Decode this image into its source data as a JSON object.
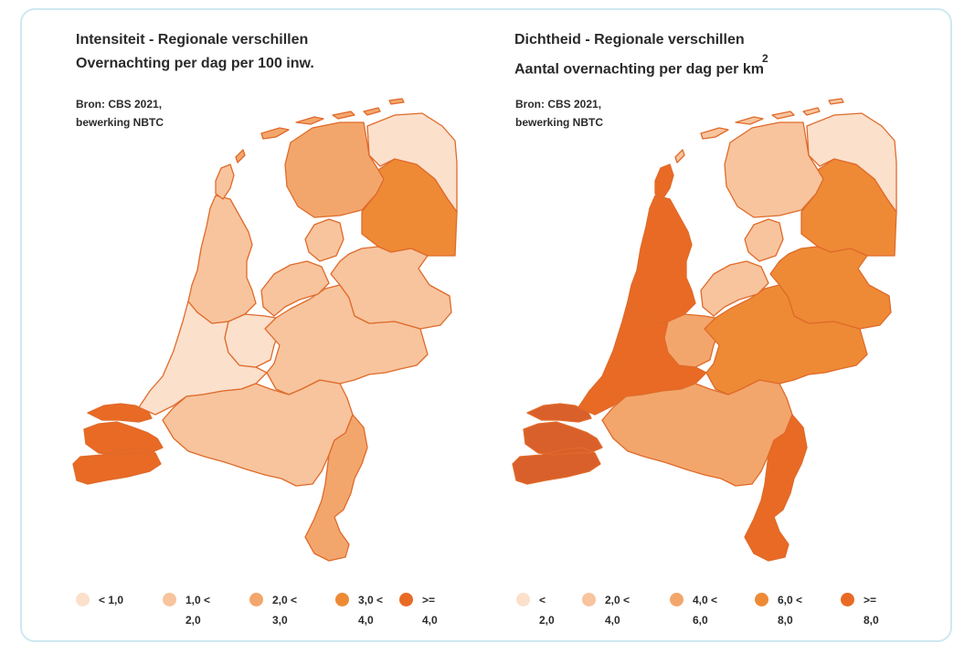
{
  "colors": {
    "class1": "#fbe0cc",
    "class2": "#f7c49d",
    "class3": "#f3a66c",
    "class4": "#ee8a35",
    "class5": "#e96a24",
    "class5_dark": "#d9602a",
    "border": "#e06a2a"
  },
  "left_map": {
    "title_line1": "Intensiteit - Regionale verschillen",
    "title_line2": "Overnachting per dag per 100 inw.",
    "source_line1": "Bron: CBS 2021,",
    "source_line2": "bewerking NBTC",
    "region_classes": {
      "groningen": 1,
      "friesland": 3,
      "drenthe": 4,
      "flevoland": 2,
      "overijssel": 2,
      "gelderland": 2,
      "utrecht": 1,
      "noord_holland": 2,
      "zuid_holland": 1,
      "zeeland": 5,
      "noord_brabant": 2,
      "limburg": 3,
      "wadden": 3,
      "texel": 2
    },
    "legend": [
      {
        "line1": "< 1,0",
        "line2": ""
      },
      {
        "line1": "1,0 <",
        "line2": "2,0"
      },
      {
        "line1": "2,0 <",
        "line2": "3,0"
      },
      {
        "line1": "3,0 <",
        "line2": "4,0"
      },
      {
        "line1": ">=",
        "line2": "4,0"
      }
    ]
  },
  "right_map": {
    "title_line1": "Dichtheid - Regionale verschillen",
    "title_line2": "Aantal overnachting per dag per km",
    "title_sup": "2",
    "source_line1": "Bron: CBS 2021,",
    "source_line2": "bewerking NBTC",
    "region_classes": {
      "groningen": 1,
      "friesland": 2,
      "drenthe": 4,
      "flevoland": 2,
      "overijssel": 4,
      "gelderland": 4,
      "utrecht": 3,
      "noord_holland": 5,
      "zuid_holland": 5,
      "zeeland": 5,
      "noord_brabant": 3,
      "limburg": 5,
      "wadden": 2,
      "texel": 5
    },
    "legend": [
      {
        "line1": "<",
        "line2": "2,0"
      },
      {
        "line1": "2,0 <",
        "line2": "4,0"
      },
      {
        "line1": "4,0 <",
        "line2": "6,0"
      },
      {
        "line1": "6,0 <",
        "line2": "8,0"
      },
      {
        "line1": ">=",
        "line2": "8,0"
      }
    ]
  }
}
